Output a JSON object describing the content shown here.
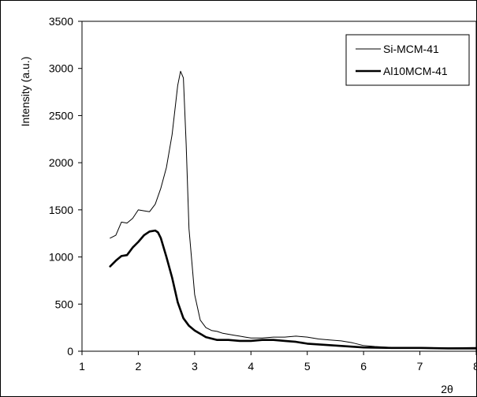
{
  "chart_data": {
    "type": "line",
    "title": "",
    "xlabel": "2θ",
    "ylabel": "Intensity (a.u.)",
    "xlim": [
      1,
      8
    ],
    "ylim": [
      0,
      3500
    ],
    "x_ticks": [
      1,
      2,
      3,
      4,
      5,
      6,
      7,
      8
    ],
    "y_ticks": [
      0,
      500,
      1000,
      1500,
      2000,
      2500,
      3000,
      3500
    ],
    "x_tick_labels": [
      "1",
      "2",
      "3",
      "4",
      "5",
      "6",
      "7",
      "8"
    ],
    "y_tick_labels": [
      "0",
      "500",
      "1000",
      "1500",
      "2000",
      "2500",
      "3000",
      "3500"
    ],
    "grid": false,
    "legend_position": "top-right",
    "series": [
      {
        "name": "Si-MCM-41",
        "color": "#000000",
        "stroke": "thin",
        "x": [
          1.5,
          1.6,
          1.7,
          1.8,
          1.9,
          2.0,
          2.1,
          2.2,
          2.3,
          2.4,
          2.5,
          2.6,
          2.7,
          2.75,
          2.8,
          2.85,
          2.9,
          3.0,
          3.1,
          3.2,
          3.3,
          3.4,
          3.5,
          3.6,
          3.7,
          3.8,
          3.9,
          4.0,
          4.2,
          4.4,
          4.6,
          4.8,
          5.0,
          5.2,
          5.4,
          5.6,
          5.8,
          6.0,
          6.2,
          6.5,
          7.0,
          7.5,
          8.0
        ],
        "y": [
          1200,
          1230,
          1370,
          1360,
          1410,
          1500,
          1490,
          1480,
          1560,
          1730,
          1950,
          2300,
          2820,
          2970,
          2900,
          2200,
          1300,
          600,
          330,
          250,
          220,
          210,
          190,
          180,
          170,
          160,
          150,
          140,
          140,
          150,
          150,
          160,
          150,
          130,
          120,
          110,
          90,
          60,
          50,
          40,
          40,
          35,
          40
        ]
      },
      {
        "name": "Al10MCM-41",
        "color": "#000000",
        "stroke": "thick",
        "x": [
          1.5,
          1.6,
          1.7,
          1.8,
          1.9,
          2.0,
          2.1,
          2.2,
          2.3,
          2.35,
          2.4,
          2.5,
          2.6,
          2.7,
          2.8,
          2.9,
          3.0,
          3.2,
          3.4,
          3.6,
          3.8,
          4.0,
          4.2,
          4.4,
          4.6,
          4.8,
          5.0,
          5.5,
          6.0,
          6.5,
          7.0,
          7.5,
          8.0
        ],
        "y": [
          900,
          960,
          1010,
          1020,
          1100,
          1160,
          1230,
          1270,
          1280,
          1260,
          1200,
          1000,
          780,
          520,
          350,
          270,
          220,
          150,
          120,
          120,
          110,
          110,
          120,
          120,
          110,
          100,
          80,
          60,
          40,
          35,
          35,
          30,
          30
        ]
      }
    ]
  }
}
